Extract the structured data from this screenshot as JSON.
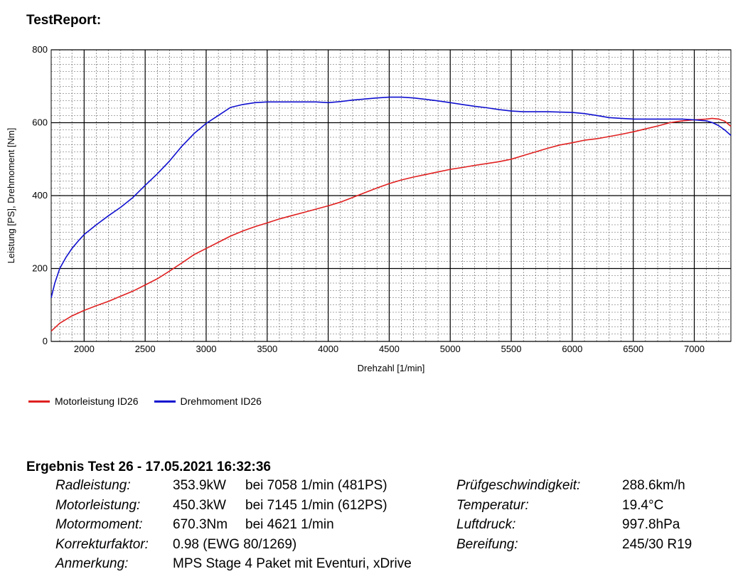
{
  "report_title": "TestReport:",
  "legend": [
    {
      "label": "Motorleistung ID26",
      "color": "#e02020"
    },
    {
      "label": "Drehmoment ID26",
      "color": "#1010d0"
    }
  ],
  "chart_data": {
    "type": "line",
    "xlabel": "Drehzahl [1/min]",
    "ylabel": "Leistung [PS], Drehmoment [Nm]",
    "xlim": [
      1730,
      7300
    ],
    "ylim": [
      0,
      800
    ],
    "x_ticks": [
      "2000",
      "2500",
      "3000",
      "3500",
      "4000",
      "4500",
      "5000",
      "5500",
      "6000",
      "6500",
      "7000"
    ],
    "y_ticks": [
      "0",
      "200",
      "400",
      "600",
      "800"
    ],
    "grid": true,
    "legend_position": "bottom-left",
    "series": [
      {
        "name": "Motorleistung ID26",
        "color": "#e02020",
        "x": [
          1730,
          1800,
          1900,
          2000,
          2100,
          2200,
          2300,
          2400,
          2500,
          2600,
          2700,
          2800,
          2900,
          3000,
          3100,
          3200,
          3300,
          3400,
          3500,
          3600,
          3700,
          3800,
          3900,
          4000,
          4100,
          4200,
          4300,
          4400,
          4500,
          4600,
          4700,
          4800,
          4900,
          5000,
          5100,
          5200,
          5300,
          5400,
          5500,
          5600,
          5700,
          5800,
          5900,
          6000,
          6100,
          6200,
          6300,
          6400,
          6500,
          6600,
          6700,
          6800,
          6900,
          7000,
          7100,
          7145,
          7200,
          7250,
          7300
        ],
        "y": [
          28,
          50,
          70,
          85,
          98,
          110,
          124,
          138,
          155,
          172,
          193,
          215,
          238,
          255,
          272,
          289,
          303,
          315,
          325,
          336,
          345,
          354,
          363,
          372,
          382,
          395,
          408,
          421,
          433,
          443,
          451,
          458,
          465,
          472,
          477,
          483,
          488,
          493,
          500,
          510,
          520,
          530,
          539,
          545,
          552,
          556,
          562,
          568,
          575,
          583,
          591,
          600,
          605,
          608,
          610,
          612,
          610,
          604,
          590
        ]
      },
      {
        "name": "Drehmoment ID26",
        "color": "#1010d0",
        "x": [
          1730,
          1760,
          1800,
          1850,
          1900,
          1950,
          2000,
          2100,
          2200,
          2300,
          2400,
          2500,
          2600,
          2700,
          2800,
          2900,
          3000,
          3100,
          3200,
          3300,
          3400,
          3500,
          3700,
          3900,
          4000,
          4100,
          4200,
          4300,
          4400,
          4500,
          4600,
          4700,
          4800,
          4900,
          5000,
          5100,
          5200,
          5300,
          5400,
          5500,
          5600,
          5800,
          6000,
          6100,
          6200,
          6300,
          6400,
          6500,
          6700,
          6900,
          7000,
          7100,
          7150,
          7200,
          7250,
          7300
        ],
        "y": [
          120,
          160,
          200,
          230,
          255,
          275,
          293,
          320,
          345,
          368,
          395,
          428,
          460,
          495,
          535,
          570,
          598,
          620,
          642,
          650,
          655,
          657,
          657,
          657,
          655,
          658,
          662,
          665,
          668,
          670,
          670,
          668,
          664,
          660,
          655,
          650,
          645,
          641,
          636,
          632,
          630,
          630,
          628,
          625,
          620,
          614,
          612,
          610,
          610,
          610,
          608,
          605,
          600,
          592,
          580,
          565
        ]
      }
    ]
  },
  "results": {
    "heading": "Ergebnis Test 26 - 17.05.2021 16:32:36",
    "rows": [
      {
        "l1": "Radleistung:",
        "v1": "353.9kW",
        "v2": "bei 7058 1/min (481PS)",
        "l2": "Prüfgeschwindigkeit:",
        "v3": "288.6km/h"
      },
      {
        "l1": "Motorleistung:",
        "v1": "450.3kW",
        "v2": "bei 7145 1/min (612PS)",
        "l2": "Temperatur:",
        "v3": "19.4°C"
      },
      {
        "l1": "Motormoment:",
        "v1": "670.3Nm",
        "v2": "bei 4621 1/min",
        "l2": "Luftdruck:",
        "v3": "997.8hPa"
      },
      {
        "l1": "Korrekturfaktor:",
        "v1": "0.98 (EWG 80/1269)",
        "v2": "",
        "l2": "Bereifung:",
        "v3": "245/30 R19"
      },
      {
        "l1": "Anmerkung:",
        "v1": "MPS Stage 4 Paket mit Eventuri, xDrive",
        "v2": "",
        "l2": "",
        "v3": ""
      }
    ]
  }
}
